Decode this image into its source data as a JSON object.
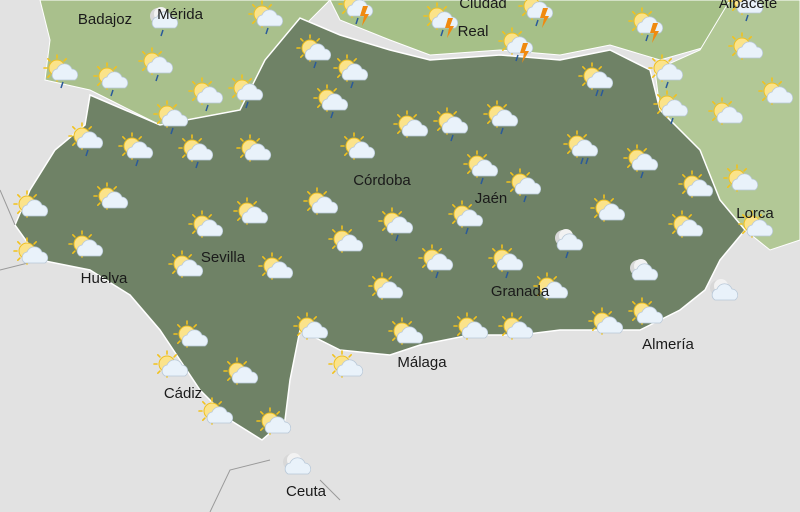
{
  "map": {
    "colors": {
      "sea": "#e2e2e2",
      "andalucia": "#6f8266",
      "neighbors": "#a9c08c",
      "border": "#ffffff"
    },
    "cities": [
      "Badajoz",
      "Mérida",
      "Ciudad",
      "Real",
      "Albacete",
      "Córdoba",
      "Jaén",
      "Lorca",
      "Sevilla",
      "Huelva",
      "Granada",
      "Almería",
      "Málaga",
      "Cádiz",
      "Ceuta"
    ],
    "icons": [
      "moon-cloud-rain",
      "sun-cloud-rain",
      "storm",
      "storm",
      "storm",
      "storm",
      "storm",
      "sun-cloud-rain",
      "sun-cloud",
      "sun-cloud-rain",
      "sun-cloud-rain",
      "sun-cloud-rain",
      "sun-cloud-rain",
      "sun-cloud-rain",
      "sun-cloud-rain",
      "sun-cloud-rain",
      "sun-cloud-rain",
      "sun-cloud-rain",
      "sun-cloud-heavy-rain",
      "sun-cloud-rain",
      "sun-cloud-rain",
      "sun-cloud",
      "sun-cloud",
      "sun-cloud-rain",
      "sun-cloud-rain",
      "sun-cloud-rain",
      "sun-cloud",
      "sun-cloud",
      "sun-cloud",
      "sun-cloud-rain",
      "sun-cloud-rain",
      "sun-cloud-heavy-rain",
      "sun-cloud-rain",
      "sun-cloud-rain",
      "sun-cloud-rain",
      "sun-cloud",
      "sun-cloud",
      "sun-cloud",
      "sun-cloud",
      "sun-cloud",
      "sun-cloud",
      "sun-cloud",
      "sun-cloud-rain",
      "sun-cloud-rain",
      "sun-cloud",
      "sun-cloud",
      "sun-cloud",
      "sun-cloud",
      "sun-cloud",
      "sun-cloud",
      "sun-cloud",
      "sun-cloud",
      "sun-cloud-rain",
      "sun-cloud-rain",
      "moon-cloud-rain",
      "sun-cloud",
      "sun-cloud",
      "moon-cloud",
      "moon-cloud",
      "sun-cloud",
      "sun-cloud",
      "sun-cloud",
      "sun-cloud",
      "sun-cloud",
      "sun-cloud",
      "sun-cloud",
      "sun-cloud",
      "sun-cloud",
      "sun-cloud",
      "sun-cloud",
      "sun-cloud",
      "moon-cloud"
    ]
  }
}
